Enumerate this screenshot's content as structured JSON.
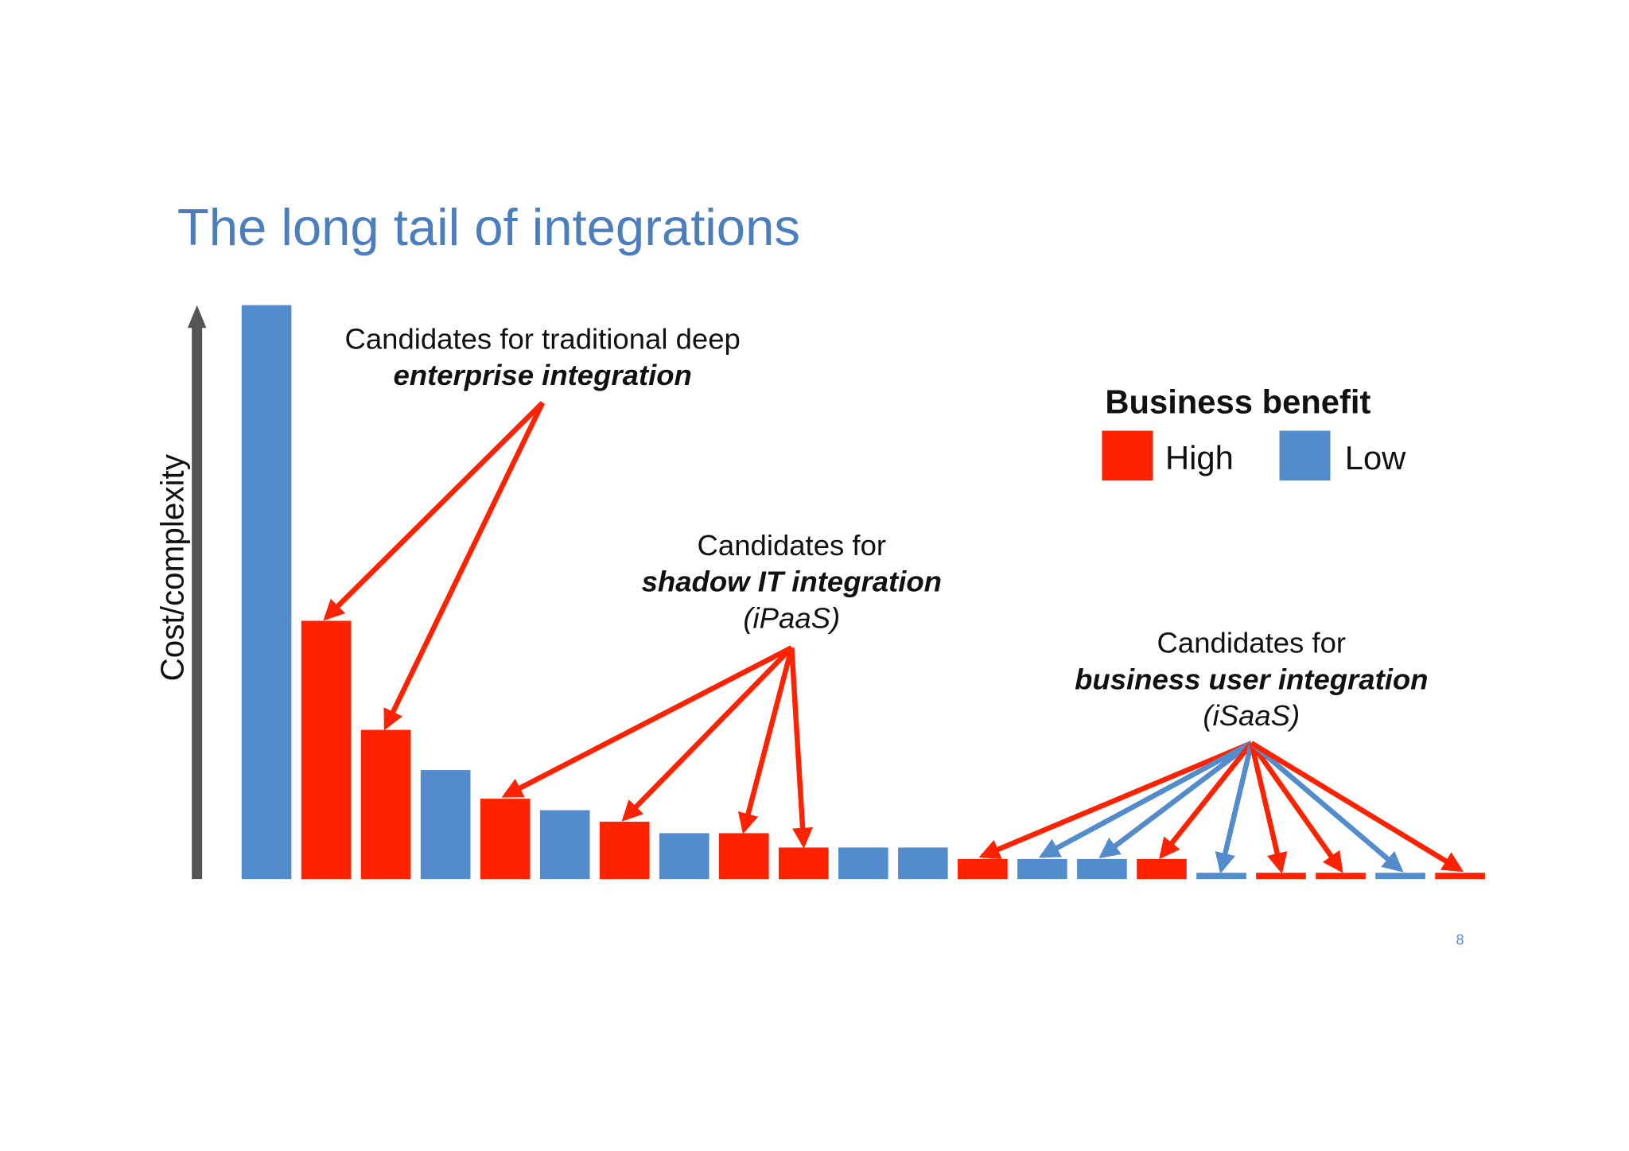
{
  "chart_data": {
    "type": "bar",
    "title": "The long tail of integrations",
    "y_label": "Cost/complexity",
    "categories": [
      null,
      null,
      null,
      null,
      null,
      null,
      null,
      null,
      null,
      null,
      null,
      null,
      null,
      null,
      null,
      null,
      null,
      null,
      null,
      null,
      null
    ],
    "series": [
      {
        "name": "High",
        "color": "#ff2200",
        "values": [
          null,
          45,
          26,
          null,
          14,
          null,
          10,
          null,
          8,
          5.5,
          null,
          null,
          3.5,
          null,
          null,
          3.5,
          null,
          1.1,
          1.1,
          null,
          1.1
        ]
      },
      {
        "name": "Low",
        "color": "#528ccc",
        "values": [
          100,
          null,
          null,
          19,
          null,
          12,
          null,
          8,
          null,
          null,
          5.5,
          5.5,
          null,
          3.5,
          3.5,
          null,
          1.1,
          null,
          null,
          1.1,
          null
        ]
      }
    ],
    "ylim": [
      0,
      100
    ],
    "legend_title": "Business benefit",
    "annotations": [
      {
        "lines": [
          "Candidates for traditional deep",
          "enterprise integration"
        ]
      },
      {
        "lines": [
          "Candidates for",
          "shadow IT integration",
          "(iPaaS)"
        ]
      },
      {
        "lines": [
          "Candidates for",
          "business user integration",
          "(iSaaS)"
        ]
      }
    ]
  },
  "page_number": 8
}
